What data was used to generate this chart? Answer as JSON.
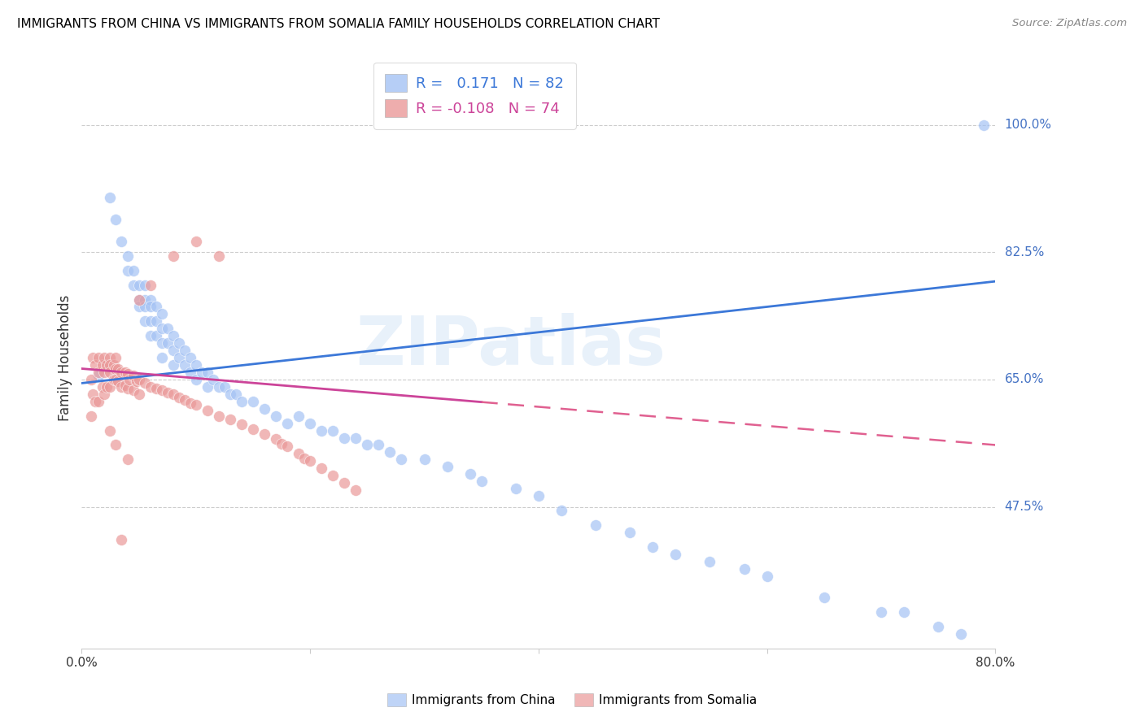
{
  "title": "IMMIGRANTS FROM CHINA VS IMMIGRANTS FROM SOMALIA FAMILY HOUSEHOLDS CORRELATION CHART",
  "source": "Source: ZipAtlas.com",
  "ylabel": "Family Households",
  "yticks": [
    "100.0%",
    "82.5%",
    "65.0%",
    "47.5%"
  ],
  "ytick_vals": [
    1.0,
    0.825,
    0.65,
    0.475
  ],
  "xlim": [
    0.0,
    0.8
  ],
  "ylim": [
    0.28,
    1.08
  ],
  "legend_china_r": "0.171",
  "legend_china_n": "82",
  "legend_somalia_r": "-0.108",
  "legend_somalia_n": "74",
  "china_color": "#a4c2f4",
  "somalia_color": "#ea9999",
  "china_line_color": "#3c78d8",
  "somalia_line_color": "#cc4499",
  "somalia_dash_color": "#e06090",
  "watermark": "ZIPatlas",
  "background_color": "#ffffff",
  "grid_color": "#cccccc",
  "title_color": "#000000",
  "axis_label_color": "#4472c4",
  "china_scatter_x": [
    0.015,
    0.025,
    0.03,
    0.035,
    0.04,
    0.04,
    0.045,
    0.045,
    0.05,
    0.05,
    0.05,
    0.055,
    0.055,
    0.055,
    0.055,
    0.06,
    0.06,
    0.06,
    0.06,
    0.065,
    0.065,
    0.065,
    0.07,
    0.07,
    0.07,
    0.07,
    0.075,
    0.075,
    0.08,
    0.08,
    0.08,
    0.085,
    0.085,
    0.09,
    0.09,
    0.095,
    0.095,
    0.1,
    0.1,
    0.105,
    0.11,
    0.11,
    0.115,
    0.12,
    0.125,
    0.13,
    0.135,
    0.14,
    0.15,
    0.16,
    0.17,
    0.18,
    0.19,
    0.2,
    0.21,
    0.22,
    0.23,
    0.24,
    0.25,
    0.26,
    0.27,
    0.28,
    0.3,
    0.32,
    0.34,
    0.35,
    0.38,
    0.4,
    0.42,
    0.45,
    0.48,
    0.5,
    0.52,
    0.55,
    0.58,
    0.6,
    0.65,
    0.7,
    0.72,
    0.75,
    0.77,
    0.79
  ],
  "china_scatter_y": [
    0.655,
    0.9,
    0.87,
    0.84,
    0.82,
    0.8,
    0.8,
    0.78,
    0.78,
    0.76,
    0.75,
    0.78,
    0.76,
    0.75,
    0.73,
    0.76,
    0.75,
    0.73,
    0.71,
    0.75,
    0.73,
    0.71,
    0.74,
    0.72,
    0.7,
    0.68,
    0.72,
    0.7,
    0.71,
    0.69,
    0.67,
    0.7,
    0.68,
    0.69,
    0.67,
    0.68,
    0.66,
    0.67,
    0.65,
    0.66,
    0.66,
    0.64,
    0.65,
    0.64,
    0.64,
    0.63,
    0.63,
    0.62,
    0.62,
    0.61,
    0.6,
    0.59,
    0.6,
    0.59,
    0.58,
    0.58,
    0.57,
    0.57,
    0.56,
    0.56,
    0.55,
    0.54,
    0.54,
    0.53,
    0.52,
    0.51,
    0.5,
    0.49,
    0.47,
    0.45,
    0.44,
    0.42,
    0.41,
    0.4,
    0.39,
    0.38,
    0.35,
    0.33,
    0.33,
    0.31,
    0.3,
    1.0
  ],
  "somalia_scatter_x": [
    0.008,
    0.008,
    0.01,
    0.01,
    0.012,
    0.012,
    0.015,
    0.015,
    0.015,
    0.018,
    0.018,
    0.02,
    0.02,
    0.02,
    0.022,
    0.022,
    0.025,
    0.025,
    0.025,
    0.025,
    0.028,
    0.028,
    0.03,
    0.03,
    0.03,
    0.032,
    0.032,
    0.035,
    0.035,
    0.038,
    0.038,
    0.04,
    0.04,
    0.042,
    0.045,
    0.045,
    0.048,
    0.05,
    0.05,
    0.055,
    0.06,
    0.065,
    0.07,
    0.075,
    0.08,
    0.085,
    0.09,
    0.095,
    0.1,
    0.11,
    0.12,
    0.13,
    0.14,
    0.15,
    0.16,
    0.17,
    0.175,
    0.18,
    0.19,
    0.195,
    0.2,
    0.21,
    0.22,
    0.23,
    0.24,
    0.05,
    0.06,
    0.08,
    0.1,
    0.12,
    0.025,
    0.03,
    0.04,
    0.035
  ],
  "somalia_scatter_y": [
    0.65,
    0.6,
    0.68,
    0.63,
    0.67,
    0.62,
    0.68,
    0.66,
    0.62,
    0.67,
    0.64,
    0.68,
    0.66,
    0.63,
    0.67,
    0.64,
    0.68,
    0.67,
    0.66,
    0.64,
    0.67,
    0.65,
    0.68,
    0.665,
    0.65,
    0.665,
    0.648,
    0.66,
    0.64,
    0.66,
    0.642,
    0.658,
    0.638,
    0.65,
    0.655,
    0.635,
    0.648,
    0.65,
    0.63,
    0.645,
    0.64,
    0.638,
    0.635,
    0.632,
    0.63,
    0.625,
    0.622,
    0.618,
    0.615,
    0.608,
    0.6,
    0.595,
    0.588,
    0.582,
    0.575,
    0.568,
    0.562,
    0.558,
    0.548,
    0.542,
    0.538,
    0.528,
    0.518,
    0.508,
    0.498,
    0.76,
    0.78,
    0.82,
    0.84,
    0.82,
    0.58,
    0.56,
    0.54,
    0.43
  ]
}
